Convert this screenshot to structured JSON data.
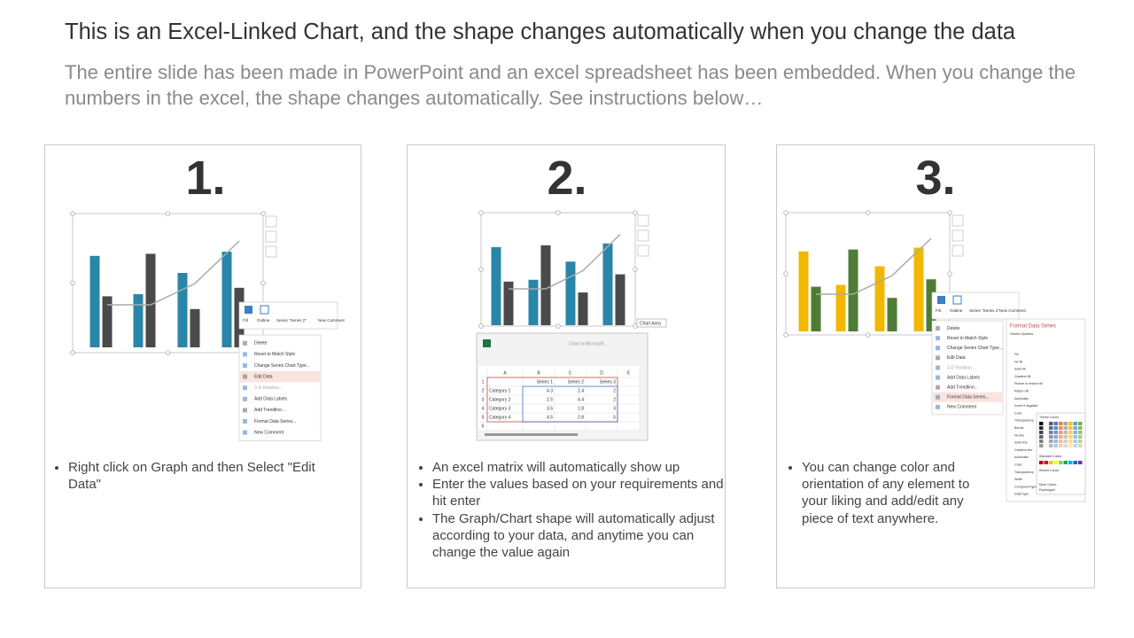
{
  "header": {
    "title": "This is an Excel-Linked Chart, and the shape changes automatically when you change the data",
    "subtitle": "The entire slide has been made in PowerPoint and an excel spreadsheet has been embedded. When you change the numbers in the excel, the shape changes automatically. See instructions below…"
  },
  "panels": [
    {
      "number": "1.",
      "bullets": [
        "Right click on Graph and then Select \"Edit Data\""
      ],
      "toolbar": [
        "Fill",
        "Outline",
        "Series \"Series 2\"",
        "New Comment"
      ],
      "menu": [
        "Delete",
        "Reset to Match Style",
        "Change Series Chart Type...",
        "Edit Data",
        "3-D Rotation...",
        "Add Data Labels",
        "Add Trendline...",
        "Format Data Series...",
        "New Comment"
      ]
    },
    {
      "number": "2.",
      "bullets": [
        "An excel matrix will automatically show up",
        "Enter the values based on your requirements and hit enter",
        "The Graph/Chart shape will automatically adjust according to your data, and anytime you can change the value again"
      ],
      "chart_label": "Chart Area",
      "excel": {
        "title": "Chart in Microsoft...",
        "columns": [
          "A",
          "B",
          "C",
          "D",
          "E"
        ],
        "row_numbers": [
          "1",
          "2",
          "3",
          "4",
          "5",
          "6"
        ],
        "series": [
          "Series 1",
          "Series 2",
          "Series 3"
        ],
        "rows": [
          {
            "label": "Category 1",
            "values": [
              4.3,
              2.4,
              2
            ]
          },
          {
            "label": "Category 2",
            "values": [
              2.5,
              4.4,
              2
            ]
          },
          {
            "label": "Category 3",
            "values": [
              3.5,
              1.8,
              3
            ]
          },
          {
            "label": "Category 4",
            "values": [
              4.5,
              2.8,
              5
            ]
          }
        ]
      }
    },
    {
      "number": "3.",
      "bullets": [
        "You can change color and orientation of any element to your liking and add/edit any piece of text anywhere."
      ],
      "toolbar": [
        "Fill",
        "Outline",
        "Series \"Series 2\"",
        "New Comment"
      ],
      "menu": [
        "Delete",
        "Reset to Match Style",
        "Change Series Chart Type...",
        "Edit Data",
        "3-D Rotation...",
        "Add Data Labels",
        "Add Trendline...",
        "Format Data Series...",
        "New Comment"
      ],
      "format_pane": {
        "title": "Format Data Series",
        "section": "Series Options",
        "items": [
          "Fill",
          "No fill",
          "Solid fill",
          "Gradient fill",
          "Picture or texture fill",
          "Pattern fill",
          "Automatic",
          "Invert if negative",
          "Color",
          "Transparency",
          "Border",
          "No line",
          "Solid line",
          "Gradient line",
          "Automatic",
          "Color",
          "Transparency",
          "Width",
          "Compound type",
          "Dash type"
        ],
        "palette": [
          "Theme Colors",
          "Standard Colors",
          "Recent Colors",
          "More Colors...",
          "Eyedropper"
        ]
      }
    }
  ]
}
